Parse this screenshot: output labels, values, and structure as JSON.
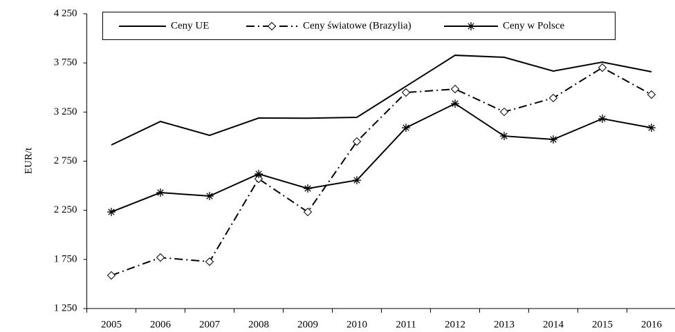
{
  "chart_data": {
    "type": "line",
    "y_label": "EUR/t",
    "categories": [
      "2005",
      "2006",
      "2007",
      "2008",
      "2009",
      "2010",
      "2011",
      "2012",
      "2013",
      "2014",
      "2015",
      "2016"
    ],
    "series": [
      {
        "name": "Ceny UE",
        "color": "#000000",
        "dash": "solid",
        "marker": "none",
        "values": [
          2915,
          3154,
          3013,
          3189,
          3187,
          3196,
          3512,
          3828,
          3807,
          3667,
          3758,
          3660
        ]
      },
      {
        "name": "Ceny światowe (Brazylia)",
        "color": "#000000",
        "dash": "dashdot",
        "marker": "diamond",
        "values": [
          1587,
          1769,
          1727,
          2570,
          2233,
          2950,
          3449,
          3484,
          3252,
          3393,
          3702,
          3428
        ]
      },
      {
        "name": "Ceny w Polsce",
        "color": "#000000",
        "dash": "solid",
        "marker": "asterisk",
        "values": [
          2233,
          2430,
          2395,
          2620,
          2472,
          2556,
          3090,
          3336,
          3006,
          2971,
          3182,
          3090
        ]
      }
    ],
    "ylim": [
      1250,
      4250
    ],
    "yticks": [
      {
        "value": 1250,
        "label": "1 250"
      },
      {
        "value": 1750,
        "label": "1 750"
      },
      {
        "value": 2250,
        "label": "2 250"
      },
      {
        "value": 2750,
        "label": "2 750"
      },
      {
        "value": 3250,
        "label": "3 250"
      },
      {
        "value": 3750,
        "label": "3 750"
      },
      {
        "value": 4250,
        "label": "4 250"
      }
    ],
    "grid": false,
    "legend": "top"
  }
}
